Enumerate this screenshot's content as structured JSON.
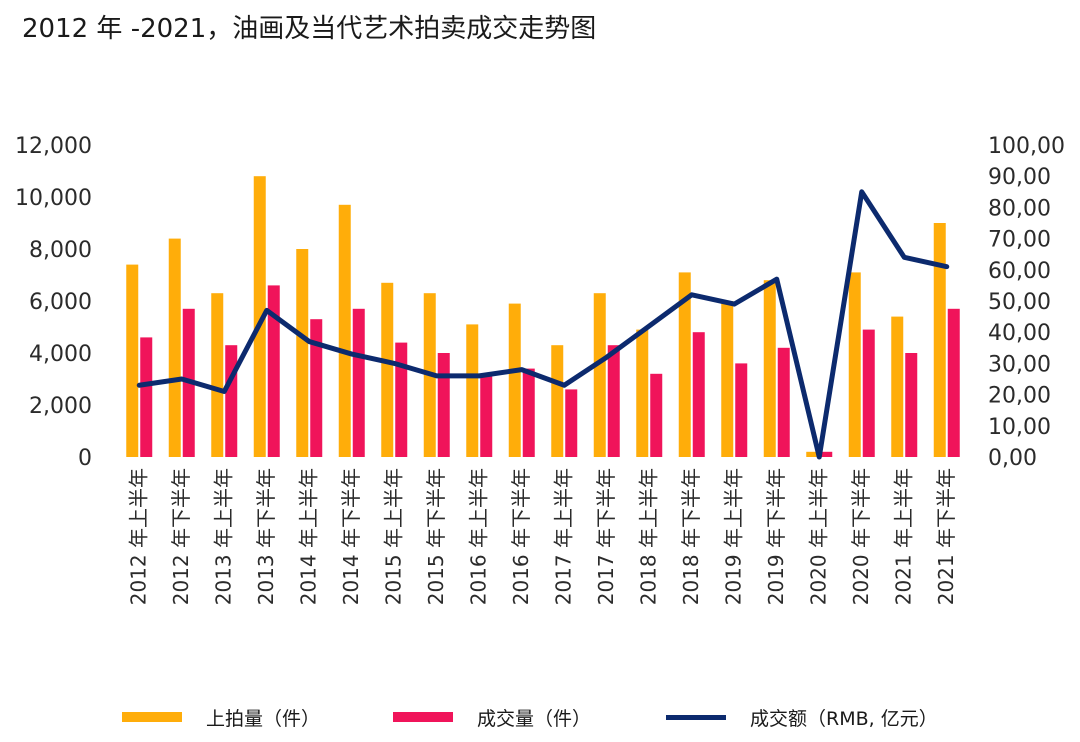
{
  "chart_data": {
    "type": "bar",
    "title": "2012 年 -2021，油画及当代艺术拍卖成交走势图",
    "categories": [
      "2012 年上半年",
      "2012 年下半年",
      "2013 年上半年",
      "2013 年下半年",
      "2014 年上半年",
      "2014 年下半年",
      "2015 年上半年",
      "2015 年下半年",
      "2016 年上半年",
      "2016 年下半年",
      "2017 年上半年",
      "2017 年下半年",
      "2018 年上半年",
      "2018 年下半年",
      "2019 年上半年",
      "2019 年下半年",
      "2020 年上半年",
      "2020 年下半年",
      "2021 年上半年",
      "2021 年下半年"
    ],
    "series": [
      {
        "name": "上拍量（件）",
        "type": "bar",
        "axis": "left",
        "color": "#FFAD0A",
        "values": [
          7400,
          8400,
          6300,
          10800,
          8000,
          9700,
          6700,
          6300,
          5100,
          5900,
          4300,
          6300,
          4900,
          7100,
          6000,
          6800,
          200,
          7100,
          5400,
          9000
        ]
      },
      {
        "name": "成交量（件）",
        "type": "bar",
        "axis": "left",
        "color": "#F0145A",
        "values": [
          4600,
          5700,
          4300,
          6600,
          5300,
          5700,
          4400,
          4000,
          3100,
          3400,
          2600,
          4300,
          3200,
          4800,
          3600,
          4200,
          200,
          4900,
          4000,
          5700
        ]
      },
      {
        "name": "成交额（RMB, 亿元）",
        "type": "line",
        "axis": "right",
        "color": "#0C2A6E",
        "values": [
          23,
          25,
          21,
          47,
          37,
          33,
          30,
          26,
          26,
          28,
          23,
          32,
          42,
          52,
          49,
          57,
          0,
          85,
          64,
          61
        ]
      }
    ],
    "y_left": {
      "ylim": [
        0,
        12000
      ],
      "ticks": [
        "0",
        "2,000",
        "4,000",
        "6,000",
        "8,000",
        "10,000",
        "12,000"
      ]
    },
    "y_right": {
      "ylim": [
        0,
        100
      ],
      "ticks": [
        "0,00",
        "10,00",
        "20,00",
        "30,00",
        "40,00",
        "50,00",
        "60,00",
        "70,00",
        "80,00",
        "90,00",
        "100,00"
      ]
    },
    "grid": false,
    "legend_position": "bottom"
  }
}
